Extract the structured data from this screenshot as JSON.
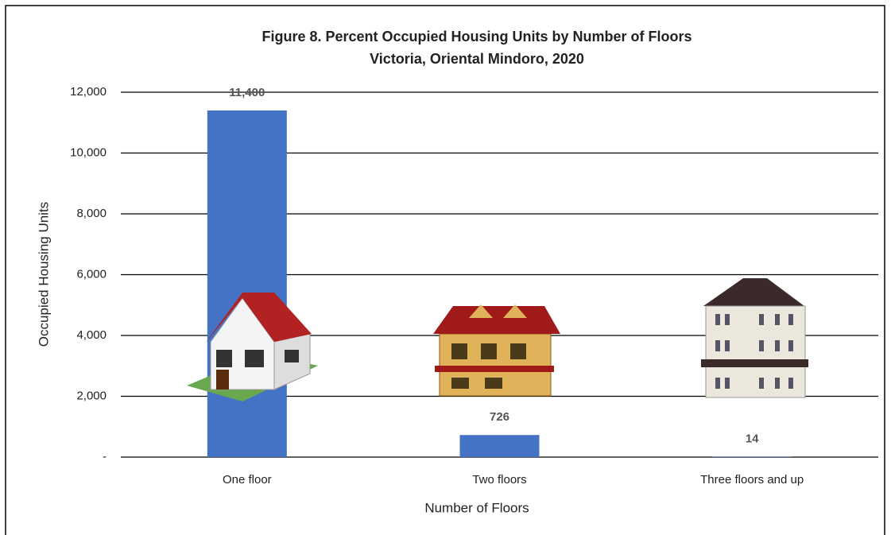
{
  "chart_data": {
    "type": "bar",
    "title": [
      "Figure 8. Percent Occupied Housing Units by Number of Floors",
      "Victoria, Oriental Mindoro, 2020"
    ],
    "x_label": "Number of Floors",
    "y_label": "Occupied Housing Units",
    "categories": [
      "One floor",
      "Two floors",
      "Three floors and up"
    ],
    "values": [
      11400,
      726,
      14
    ],
    "value_labels": [
      "11,400",
      "726",
      "14"
    ],
    "color": "#4472c4",
    "ylim": [
      0,
      12000
    ],
    "yticks": [
      {
        "value": 0,
        "label": "-"
      },
      {
        "value": 2000,
        "label": "2,000"
      },
      {
        "value": 4000,
        "label": "4,000"
      },
      {
        "value": 6000,
        "label": "6,000"
      },
      {
        "value": 8000,
        "label": "8,000"
      },
      {
        "value": 10000,
        "label": "10,000"
      },
      {
        "value": 12000,
        "label": "12,000"
      }
    ],
    "grid": true
  }
}
